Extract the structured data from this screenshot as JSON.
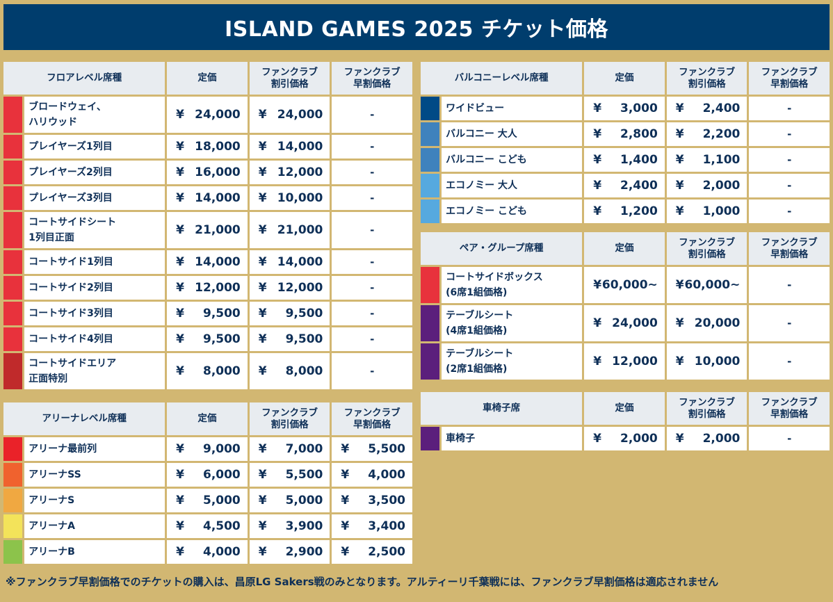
{
  "title": "ISLAND GAMES 2025 チケット価格",
  "headers": {
    "standard": "定価",
    "fanclub_discount": "ファンクラブ\n割引価格",
    "fanclub_early": "ファンクラブ\n早割価格"
  },
  "currency": "¥",
  "dash": "-",
  "floor": {
    "heading": "フロアレベル席種",
    "rows": [
      {
        "name": "ブロードウェイ、\nハリウッド",
        "color": "#e8323c",
        "std": "24,000",
        "fc": "24,000",
        "early": "-"
      },
      {
        "name": "プレイヤーズ1列目",
        "color": "#e8323c",
        "std": "18,000",
        "fc": "14,000",
        "early": "-"
      },
      {
        "name": "プレイヤーズ2列目",
        "color": "#e8323c",
        "std": "16,000",
        "fc": "12,000",
        "early": "-"
      },
      {
        "name": "プレイヤーズ3列目",
        "color": "#e8323c",
        "std": "14,000",
        "fc": "10,000",
        "early": "-"
      },
      {
        "name": "コートサイドシート\n1列目正面",
        "color": "#e8323c",
        "std": "21,000",
        "fc": "21,000",
        "early": "-"
      },
      {
        "name": "コートサイド1列目",
        "color": "#e8323c",
        "std": "14,000",
        "fc": "14,000",
        "early": "-"
      },
      {
        "name": "コートサイド2列目",
        "color": "#e8323c",
        "std": "12,000",
        "fc": "12,000",
        "early": "-"
      },
      {
        "name": "コートサイド3列目",
        "color": "#e8323c",
        "std": "9,500",
        "fc": "9,500",
        "early": "-"
      },
      {
        "name": "コートサイド4列目",
        "color": "#e8323c",
        "std": "9,500",
        "fc": "9,500",
        "early": "-"
      },
      {
        "name": "コートサイドエリア\n正面特別",
        "color": "#c02a2b",
        "std": "8,000",
        "fc": "8,000",
        "early": "-"
      }
    ]
  },
  "arena": {
    "heading": "アリーナレベル席種",
    "rows": [
      {
        "name": "アリーナ最前列",
        "color": "#ea2229",
        "std": "9,000",
        "fc": "7,000",
        "early": "5,500"
      },
      {
        "name": "アリーナSS",
        "color": "#f0622e",
        "std": "6,000",
        "fc": "5,500",
        "early": "4,000"
      },
      {
        "name": "アリーナS",
        "color": "#f0a841",
        "std": "5,000",
        "fc": "5,000",
        "early": "3,500"
      },
      {
        "name": "アリーナA",
        "color": "#f3e35a",
        "std": "4,500",
        "fc": "3,900",
        "early": "3,400"
      },
      {
        "name": "アリーナB",
        "color": "#8cc34b",
        "std": "4,000",
        "fc": "2,900",
        "early": "2,500"
      }
    ]
  },
  "balcony": {
    "heading": "バルコニーレベル席種",
    "rows": [
      {
        "name": "ワイドビュー",
        "color": "#004a86",
        "std": "3,000",
        "fc": "2,400",
        "early": "-"
      },
      {
        "name": "バルコニー 大人",
        "color": "#3f82bd",
        "std": "2,800",
        "fc": "2,200",
        "early": "-"
      },
      {
        "name": "バルコニー こども",
        "color": "#3f82bd",
        "std": "1,400",
        "fc": "1,100",
        "early": "-"
      },
      {
        "name": "エコノミー 大人",
        "color": "#56a9df",
        "std": "2,400",
        "fc": "2,000",
        "early": "-"
      },
      {
        "name": "エコノミー こども",
        "color": "#56a9df",
        "std": "1,200",
        "fc": "1,000",
        "early": "-"
      }
    ]
  },
  "pair": {
    "heading": "ペア・グループ席種",
    "rows": [
      {
        "name": "コートサイドボックス\n(6席1組価格)",
        "color": "#e8323c",
        "std": "60,000~",
        "fc": "60,000~",
        "early": "-"
      },
      {
        "name": "テーブルシート\n(4席1組価格)",
        "color": "#5b1f7c",
        "std": "24,000",
        "fc": "20,000",
        "early": "-"
      },
      {
        "name": "テーブルシート\n(2席1組価格)",
        "color": "#5b1f7c",
        "std": "12,000",
        "fc": "10,000",
        "early": "-"
      }
    ]
  },
  "wheelchair": {
    "heading": "車椅子席",
    "rows": [
      {
        "name": "車椅子",
        "color": "#5b1f7c",
        "std": "2,000",
        "fc": "2,000",
        "early": "-"
      }
    ]
  },
  "footnote": "※ファンクラブ早割価格でのチケットの購入は、昌原LG Sakers戦のみとなります。アルティーリ千葉戦には、ファンクラブ早割価格は適応されません"
}
